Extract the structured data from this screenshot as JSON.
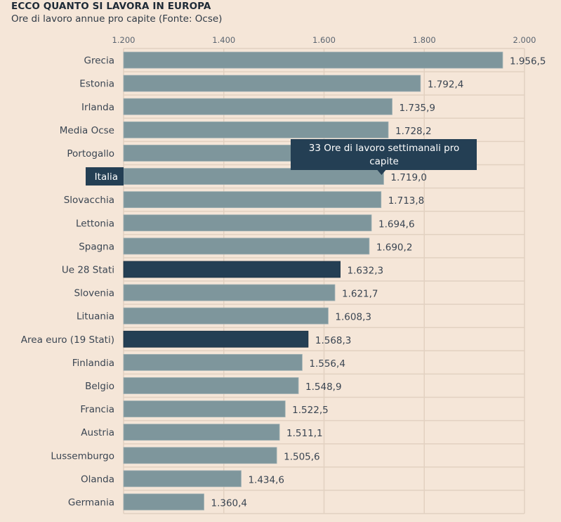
{
  "header": {
    "title": "ECCO QUANTO SI LAVORA IN EUROPA",
    "subtitle": "Ore di lavoro annue pro capite (Fonte: Ocse)"
  },
  "colors": {
    "background": "#f5e6d8",
    "bar": "#7e969c",
    "highlight_bar": "#243f54",
    "grid": "#e2d1c1",
    "tooltip_bg": "#243f54",
    "tooltip_text": "#ffffff"
  },
  "tooltip": {
    "text_line1": "33 Ore di lavoro settimanali pro",
    "text_line2": "capite",
    "category": "Italia"
  },
  "chart_data": {
    "type": "bar",
    "orientation": "horizontal",
    "title": "ECCO QUANTO SI LAVORA IN EUROPA",
    "subtitle": "Ore di lavoro annue pro capite (Fonte: Ocse)",
    "xlabel": "",
    "ylabel": "",
    "xlim": [
      1200,
      2000
    ],
    "xticks": [
      1200,
      1400,
      1600,
      1800,
      2000
    ],
    "xtick_labels": [
      "1.200",
      "1.400",
      "1.600",
      "1.800",
      "2.000"
    ],
    "xtick_position": "top",
    "grid": true,
    "categories": [
      "Grecia",
      "Estonia",
      "Irlanda",
      "Media Ocse",
      "Portogallo",
      "Italia",
      "Slovacchia",
      "Lettonia",
      "Spagna",
      "Ue 28 Stati",
      "Slovenia",
      "Lituania",
      "Area euro (19 Stati)",
      "Finlandia",
      "Belgio",
      "Francia",
      "Austria",
      "Lussemburgo",
      "Olanda",
      "Germania"
    ],
    "values": [
      1956.5,
      1792.4,
      1735.9,
      1728.2,
      1723.0,
      1719.0,
      1713.8,
      1694.6,
      1690.2,
      1632.3,
      1621.7,
      1608.3,
      1568.3,
      1556.4,
      1548.9,
      1522.5,
      1511.1,
      1505.6,
      1434.6,
      1360.4
    ],
    "value_labels": [
      "1.956,5",
      "1.792,4",
      "1.735,9",
      "1.728,2",
      "",
      "1.719,0",
      "1.713,8",
      "1.694,6",
      "1.690,2",
      "1.632,3",
      "1.621,7",
      "1.608,3",
      "1.568,3",
      "1.556,4",
      "1.548,9",
      "1.522,5",
      "1.511,1",
      "1.505,6",
      "1.434,6",
      "1.360,4"
    ],
    "highlighted": [
      "Ue 28 Stati",
      "Area euro (19 Stati)"
    ],
    "selected_label": "Italia"
  }
}
